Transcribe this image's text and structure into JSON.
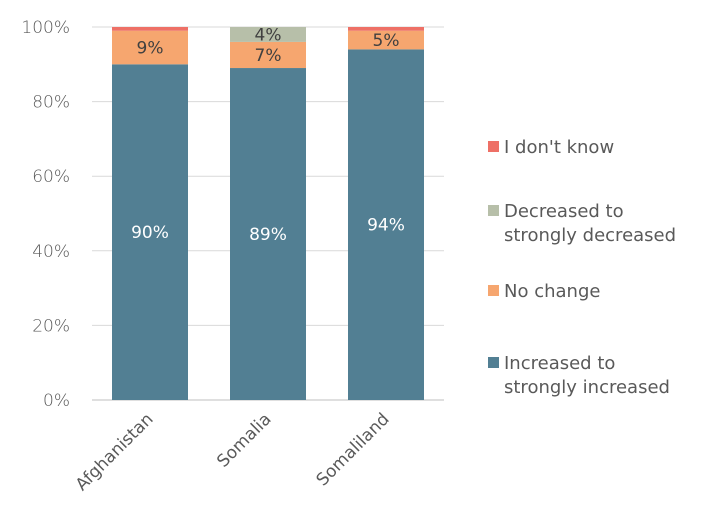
{
  "chart_data": {
    "type": "bar",
    "stacked": true,
    "categories": [
      "Afghanistan",
      "Somalia",
      "Somaliland"
    ],
    "series": [
      {
        "name": "Increased to strongly increased",
        "color": "#527f93",
        "values": [
          90,
          89,
          94
        ],
        "labels": [
          "90%",
          "89%",
          "94%"
        ]
      },
      {
        "name": "No change",
        "color": "#f6a66f",
        "values": [
          9,
          7,
          5
        ],
        "labels": [
          "9%",
          "7%",
          "5%"
        ]
      },
      {
        "name": "Decreased to strongly decreased",
        "color": "#b7bfa9",
        "values": [
          0,
          4,
          0
        ],
        "labels": [
          "",
          "4%",
          ""
        ]
      },
      {
        "name": "I don't know",
        "color": "#ee7066",
        "values": [
          1,
          0,
          1
        ],
        "labels": [
          "",
          "",
          ""
        ]
      }
    ],
    "legend_order": [
      3,
      2,
      1,
      0
    ],
    "legend_lines": [
      [
        "I don't know"
      ],
      [
        "Decreased to",
        "strongly decreased"
      ],
      [
        "No change"
      ],
      [
        "Increased to",
        "strongly increased"
      ]
    ],
    "yticks": [
      "0%",
      "20%",
      "40%",
      "60%",
      "80%",
      "100%"
    ],
    "ylim": [
      0,
      100
    ],
    "grid": true,
    "legend_position": "right"
  }
}
